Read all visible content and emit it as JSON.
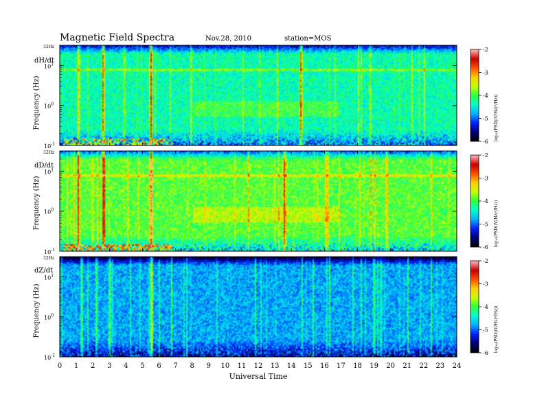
{
  "header": {
    "title": "Magnetic  Field  Spectra",
    "date": "Nov.28, 2010",
    "station": "station=MOS"
  },
  "colors": {
    "colormap": [
      "#000000",
      "#00007a",
      "#0020ff",
      "#00b4ff",
      "#00ffd0",
      "#30ff40",
      "#c8ff00",
      "#ffd000",
      "#ff5000",
      "#c80000",
      "#ffb4b4"
    ]
  },
  "chart_data": [
    {
      "type": "heatmap",
      "panel_label": "dH/dt",
      "ylabel": "Frequency  (Hz)",
      "xlabel": "",
      "xlim": [
        0,
        24
      ],
      "ylim": [
        0.1,
        32
      ],
      "yscale": "log",
      "top_label": "32Hz",
      "yticks": [
        {
          "label": "10",
          "exp": "-1"
        },
        {
          "label": "10",
          "exp": "0"
        },
        {
          "label": "10",
          "exp": "1"
        }
      ],
      "colorbar": {
        "label": "log₁₀(PSD((V/Hz)²/Hz))",
        "ticks": [
          "-2",
          "-3",
          "-4",
          "-5",
          "-6"
        ],
        "range": [
          -6,
          -2
        ]
      },
      "background_level": 0.42,
      "events": [
        {
          "time": 1.1,
          "strength": 0.55
        },
        {
          "time": 2.6,
          "strength": 0.85
        },
        {
          "time": 5.5,
          "strength": 0.95
        },
        {
          "time": 14.6,
          "strength": 0.8
        },
        {
          "time": 18.8,
          "strength": 0.35
        }
      ],
      "pc1_band": {
        "t0": 0.2,
        "t1": 6.8,
        "freq": 0.1
      }
    },
    {
      "type": "heatmap",
      "panel_label": "dD/dt",
      "ylabel": "Frequency  (Hz)",
      "xlabel": "",
      "xlim": [
        0,
        24
      ],
      "ylim": [
        0.1,
        32
      ],
      "yscale": "log",
      "top_label": "32Hz",
      "yticks": [
        {
          "label": "10",
          "exp": "-1"
        },
        {
          "label": "10",
          "exp": "0"
        },
        {
          "label": "10",
          "exp": "1"
        }
      ],
      "colorbar": {
        "label": "log₁₀(PSD((V/Hz)²/Hz))",
        "ticks": [
          "-2",
          "-3",
          "-4",
          "-5",
          "-6"
        ],
        "range": [
          -6,
          -2
        ]
      },
      "background_level": 0.52,
      "events": [
        {
          "time": 1.1,
          "strength": 0.6
        },
        {
          "time": 2.6,
          "strength": 0.8
        },
        {
          "time": 5.5,
          "strength": 0.95
        },
        {
          "time": 13.6,
          "strength": 0.7
        },
        {
          "time": 16.2,
          "strength": 0.45
        }
      ],
      "pc1_band": {
        "t0": 0.2,
        "t1": 6.8,
        "freq": 0.1
      }
    },
    {
      "type": "heatmap",
      "panel_label": "dZ/dt",
      "ylabel": "Frequency  (Hz)",
      "xlabel": "Universal Time",
      "xlim": [
        0,
        24
      ],
      "ylim": [
        0.1,
        32
      ],
      "yscale": "log",
      "top_label": "32Hz",
      "yticks": [
        {
          "label": "10",
          "exp": "-1"
        },
        {
          "label": "10",
          "exp": "0"
        },
        {
          "label": "10",
          "exp": "1"
        }
      ],
      "xticks": [
        "0",
        "1",
        "2",
        "3",
        "4",
        "5",
        "6",
        "7",
        "8",
        "9",
        "10",
        "11",
        "12",
        "13",
        "14",
        "15",
        "16",
        "17",
        "18",
        "19",
        "20",
        "21",
        "22",
        "23",
        "24"
      ],
      "colorbar": {
        "label": "log₁₀(PSD((V/Hz)²/Hz))",
        "ticks": [
          "-2",
          "-3",
          "-4",
          "-5",
          "-6"
        ],
        "range": [
          -6,
          -2
        ]
      },
      "background_level": 0.3,
      "events": [
        {
          "time": 1.3,
          "strength": 0.45
        },
        {
          "time": 3.0,
          "strength": 0.4
        },
        {
          "time": 5.5,
          "strength": 0.55
        }
      ],
      "pc1_band": null
    }
  ]
}
